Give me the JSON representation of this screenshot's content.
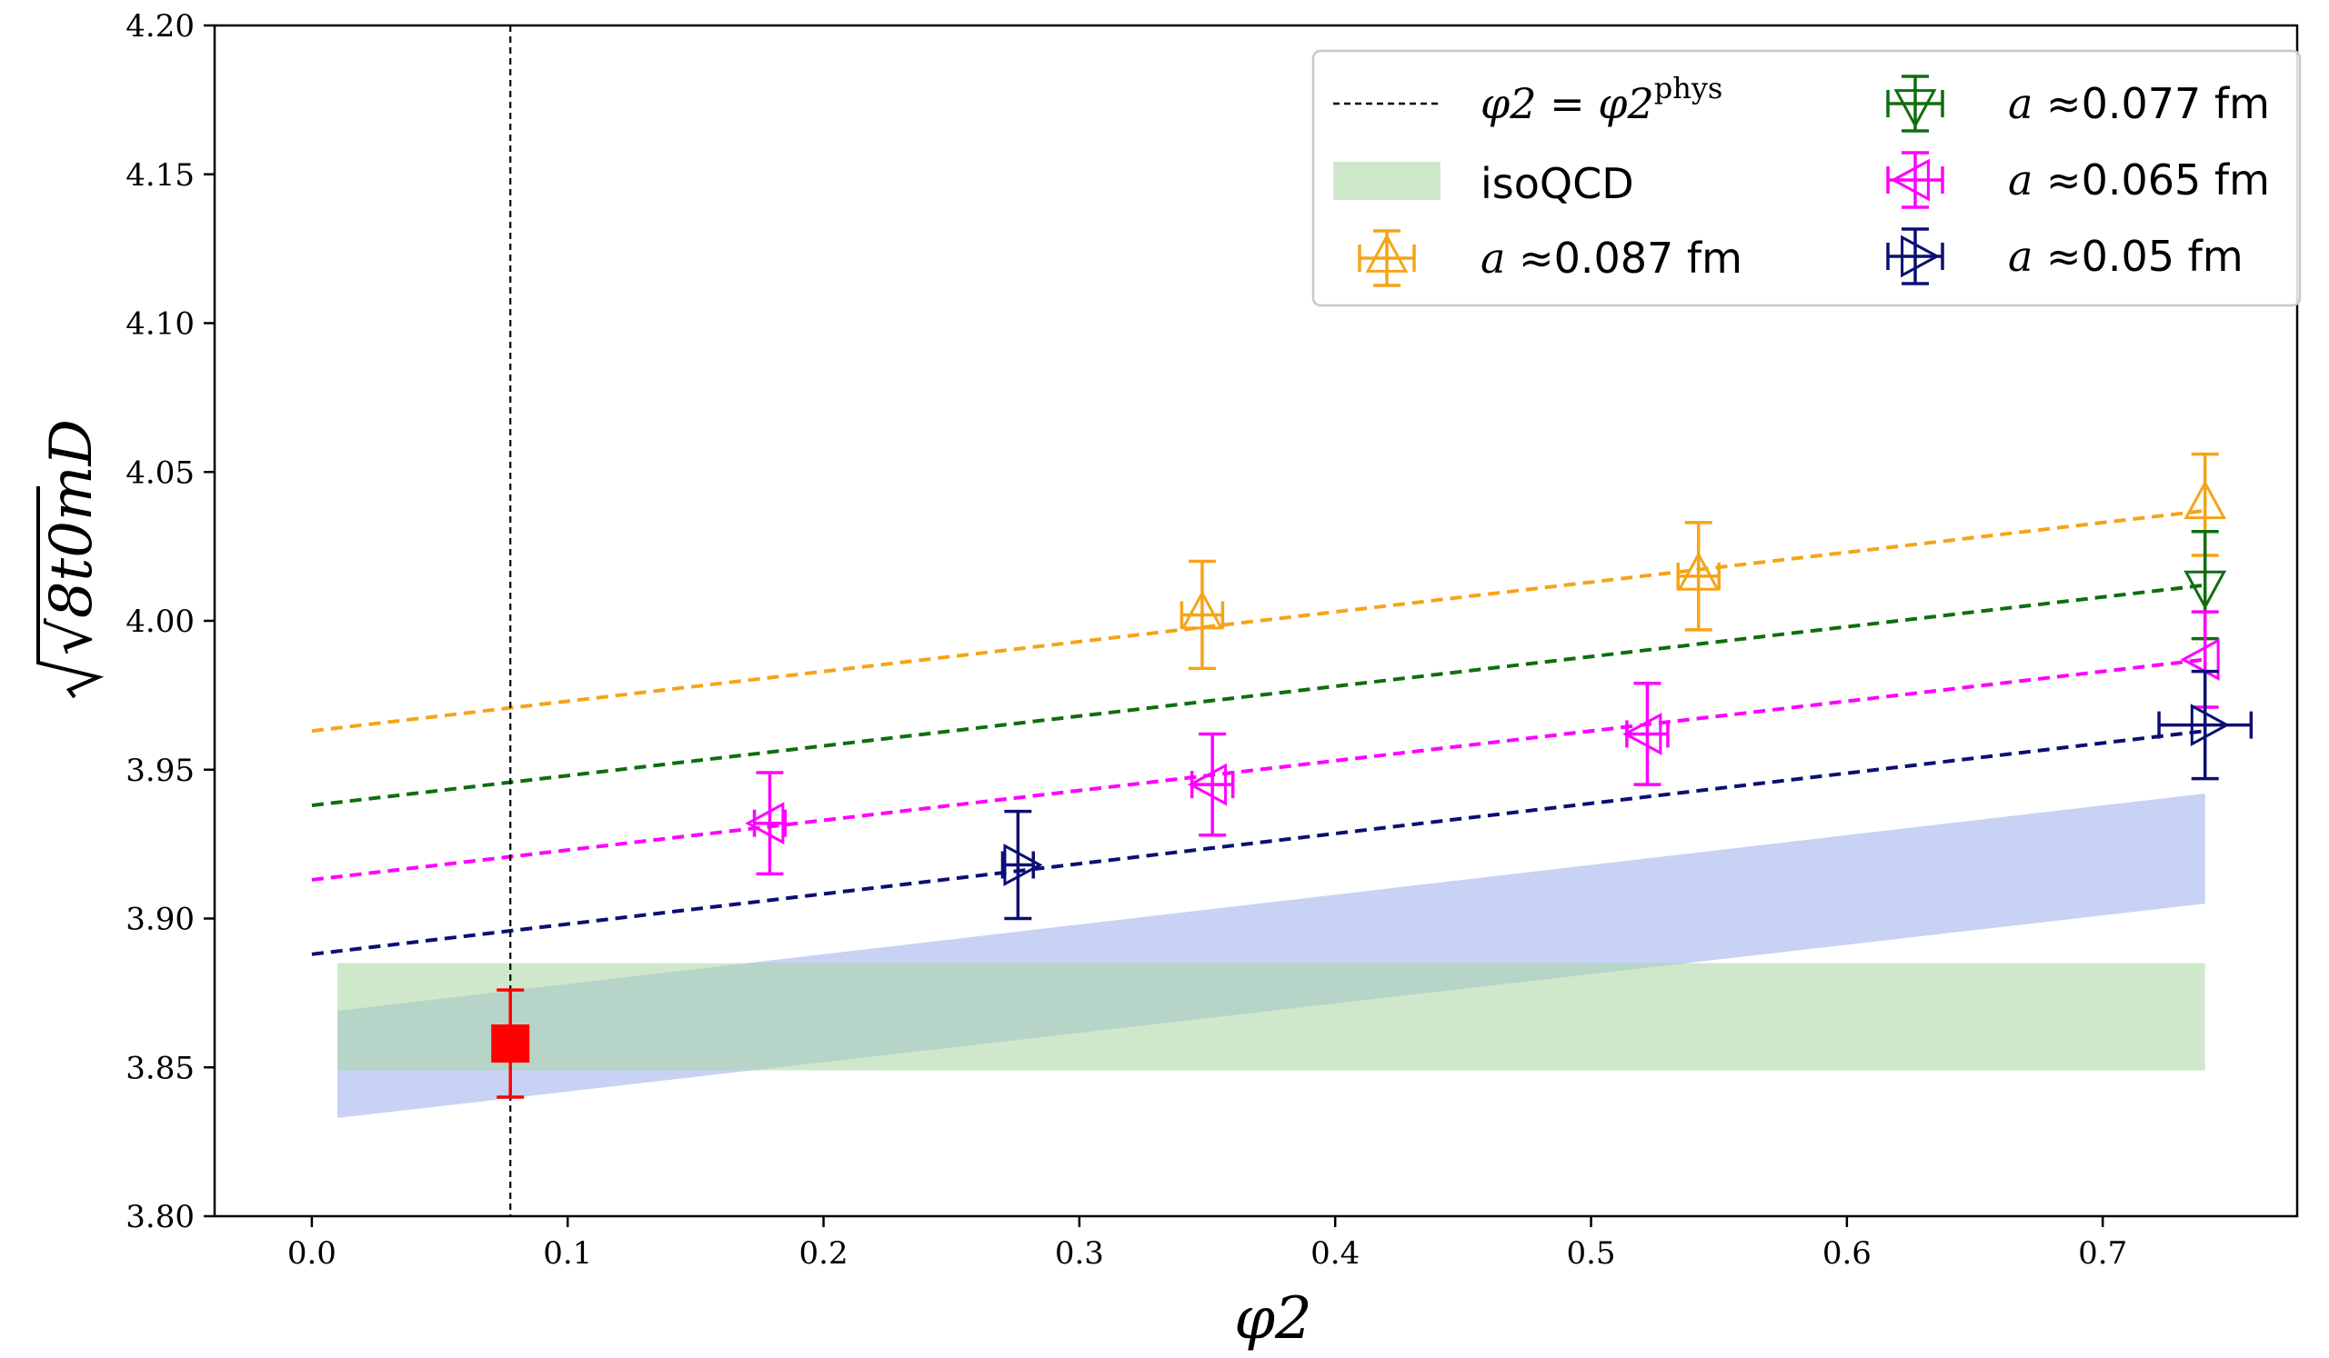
{
  "chart_data": {
    "type": "scatter",
    "xlabel": "φ2",
    "ylabel": "√8t0mD",
    "xlim": [
      -0.038,
      0.776
    ],
    "ylim": [
      3.8,
      4.2
    ],
    "xticks": [
      0.0,
      0.1,
      0.2,
      0.3,
      0.4,
      0.5,
      0.6,
      0.7
    ],
    "xtick_labels": [
      "0.0",
      "0.1",
      "0.2",
      "0.3",
      "0.4",
      "0.5",
      "0.6",
      "0.7"
    ],
    "yticks": [
      3.8,
      3.85,
      3.9,
      3.95,
      4.0,
      4.05,
      4.1,
      4.15,
      4.2
    ],
    "ytick_labels": [
      "3.80",
      "3.85",
      "3.90",
      "3.95",
      "4.00",
      "4.05",
      "4.10",
      "4.15",
      "4.20"
    ],
    "legend_position": "top-right",
    "grid": false,
    "physical_point": {
      "x": 0.0776,
      "name": "φ2 = φ2^phys",
      "legend_label": "φ2 = φ2",
      "legend_sup": "phys",
      "color": "#000000"
    },
    "isoqcd_band": {
      "name": "isoQCD",
      "x_range": [
        0.01,
        0.74
      ],
      "y_low": 3.849,
      "y_high": 3.885,
      "color": "#a8d5a2"
    },
    "continuum_band": {
      "x_range": [
        0.01,
        0.74
      ],
      "lower": [
        3.833,
        3.905
      ],
      "upper": [
        3.869,
        3.942
      ],
      "color": "#8fa6ea"
    },
    "result_point": {
      "x": 0.0776,
      "y": 3.858,
      "yerr": 0.018,
      "color": "#ff0000"
    },
    "series": [
      {
        "name": "a ≈0.087 fm",
        "legend_var": "a",
        "legend_rest": "≈0.087 fm",
        "color": "#f5a418",
        "marker": "triangle-up",
        "fit_line": [
          [
            0.0,
            3.963
          ],
          [
            0.74,
            4.037
          ]
        ],
        "points": [
          {
            "x": 0.348,
            "y": 4.002,
            "xerr": 0.008,
            "yerr": 0.018
          },
          {
            "x": 0.542,
            "y": 4.015,
            "xerr": 0.008,
            "yerr": 0.018
          },
          {
            "x": 0.74,
            "y": 4.039,
            "xerr": 0.0,
            "yerr": 0.017
          }
        ]
      },
      {
        "name": "a ≈0.077 fm",
        "legend_var": "a",
        "legend_rest": "≈0.077 fm",
        "color": "#0f6e0f",
        "marker": "triangle-down",
        "fit_line": [
          [
            0.0,
            3.938
          ],
          [
            0.74,
            4.012
          ]
        ],
        "points": [
          {
            "x": 0.74,
            "y": 4.012,
            "xerr": 0.0,
            "yerr": 0.018
          }
        ]
      },
      {
        "name": "a ≈0.065 fm",
        "legend_var": "a",
        "legend_rest": "≈0.065 fm",
        "color": "#ff00ff",
        "marker": "triangle-left",
        "fit_line": [
          [
            0.0,
            3.913
          ],
          [
            0.74,
            3.987
          ]
        ],
        "points": [
          {
            "x": 0.179,
            "y": 3.932,
            "xerr": 0.006,
            "yerr": 0.017
          },
          {
            "x": 0.352,
            "y": 3.945,
            "xerr": 0.008,
            "yerr": 0.017
          },
          {
            "x": 0.522,
            "y": 3.962,
            "xerr": 0.008,
            "yerr": 0.017
          },
          {
            "x": 0.74,
            "y": 3.987,
            "xerr": 0.0,
            "yerr": 0.016
          }
        ]
      },
      {
        "name": "a ≈0.05 fm",
        "legend_var": "a",
        "legend_rest": "≈0.05 fm",
        "color": "#0a1073",
        "marker": "triangle-right",
        "fit_line": [
          [
            0.0,
            3.888
          ],
          [
            0.74,
            3.963
          ]
        ],
        "points": [
          {
            "x": 0.276,
            "y": 3.918,
            "xerr": 0.006,
            "yerr": 0.018
          },
          {
            "x": 0.74,
            "y": 3.965,
            "xerr": 0.018,
            "yerr": 0.018
          }
        ]
      }
    ]
  }
}
